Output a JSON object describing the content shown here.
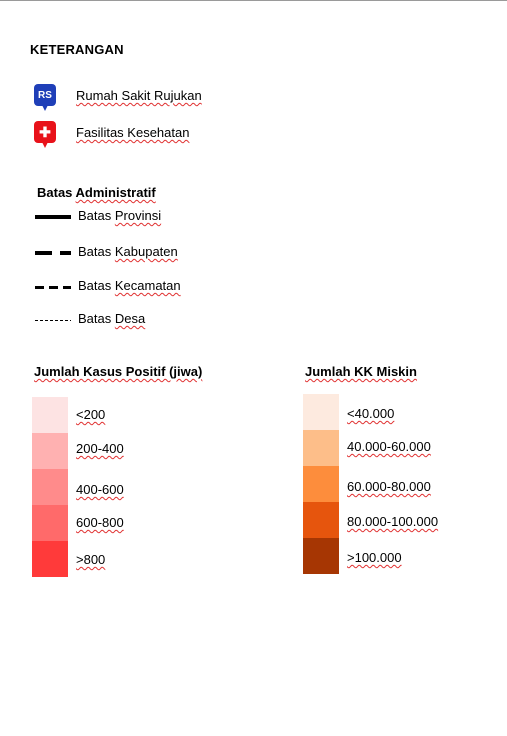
{
  "title": "KETERANGAN",
  "point_legend": [
    {
      "marker_text": "RS",
      "label": "Rumah Sakit Rujukan",
      "color": "#1f3fb8",
      "icon": "hospital-rs-icon"
    },
    {
      "marker_text": "✚",
      "label": "Fasilitas Kesehatan",
      "color": "#e8121a",
      "icon": "health-facility-icon"
    }
  ],
  "boundaries": {
    "title": "Batas Administratif",
    "items": [
      {
        "prefix": "Batas ",
        "name": "Provinsi"
      },
      {
        "prefix": "Batas ",
        "name": "Kabupaten"
      },
      {
        "prefix": "Batas ",
        "name": "Kecamatan"
      },
      {
        "prefix": "Batas ",
        "name": "Desa"
      }
    ]
  },
  "positive_cases": {
    "title": "Jumlah Kasus Positif (jiwa)",
    "classes": [
      {
        "label": "<200",
        "color": "#fde3e3"
      },
      {
        "label": "200-400",
        "color": "#ffb1b1"
      },
      {
        "label": "400-600",
        "color": "#ff8b8b"
      },
      {
        "label": "600-800",
        "color": "#ff6a6a"
      },
      {
        "label": ">800",
        "color": "#ff3a3a"
      }
    ]
  },
  "poor_households": {
    "title": "Jumlah KK Miskin",
    "classes": [
      {
        "label": "<40.000",
        "color": "#fdeadf"
      },
      {
        "label": "40.000-60.000",
        "color": "#fdbe89"
      },
      {
        "label": "60.000-80.000",
        "color": "#fd8d3c"
      },
      {
        "label": "80.000-100.000",
        "color": "#e6550d"
      },
      {
        "label": ">100.000",
        "color": "#a63603"
      }
    ]
  }
}
